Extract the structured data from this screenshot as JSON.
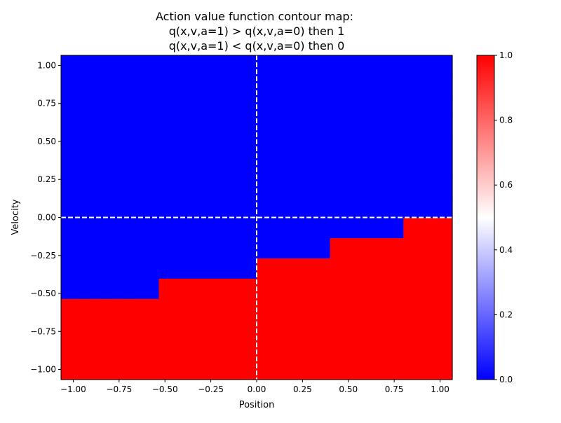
{
  "chart_data": {
    "type": "heatmap",
    "title_lines": [
      "Action value function contour map:",
      "q(x,v,a=1) > q(x,v,a=0) then 1",
      "q(x,v,a=1) < q(x,v,a=0) then 0"
    ],
    "xlabel": "Position",
    "ylabel": "Velocity",
    "xlim": [
      -1.0667,
      1.0667
    ],
    "ylim": [
      -1.0667,
      1.0667
    ],
    "x_ticks": [
      "−1.00",
      "−0.75",
      "−0.50",
      "−0.25",
      "0.00",
      "0.25",
      "0.50",
      "0.75",
      "1.00"
    ],
    "x_tick_values": [
      -1,
      -0.75,
      -0.5,
      -0.25,
      0,
      0.25,
      0.5,
      0.75,
      1
    ],
    "y_ticks": [
      "−1.00",
      "−0.75",
      "−0.50",
      "−0.25",
      "0.00",
      "0.25",
      "0.50",
      "0.75",
      "1.00"
    ],
    "y_tick_values": [
      -1,
      -0.75,
      -0.5,
      -0.25,
      0,
      0.25,
      0.5,
      0.75,
      1
    ],
    "x_centers_range": [
      -1,
      1
    ],
    "y_centers_range": [
      -1,
      1
    ],
    "z_rows_bottom_to_top": [
      [
        1,
        1,
        1,
        1,
        1,
        1,
        1,
        1,
        1,
        1,
        1,
        1,
        1,
        1,
        1,
        1
      ],
      [
        1,
        1,
        1,
        1,
        1,
        1,
        1,
        1,
        1,
        1,
        1,
        1,
        1,
        1,
        1,
        1
      ],
      [
        1,
        1,
        1,
        1,
        1,
        1,
        1,
        1,
        1,
        1,
        1,
        1,
        1,
        1,
        1,
        1
      ],
      [
        1,
        1,
        1,
        1,
        1,
        1,
        1,
        1,
        1,
        1,
        1,
        1,
        1,
        1,
        1,
        1
      ],
      [
        0,
        0,
        0,
        0,
        1,
        1,
        1,
        1,
        1,
        1,
        1,
        1,
        1,
        1,
        1,
        1
      ],
      [
        0,
        0,
        0,
        0,
        0,
        0,
        0,
        0,
        1,
        1,
        1,
        1,
        1,
        1,
        1,
        1
      ],
      [
        0,
        0,
        0,
        0,
        0,
        0,
        0,
        0,
        0,
        0,
        0,
        1,
        1,
        1,
        1,
        1
      ],
      [
        0,
        0,
        0,
        0,
        0,
        0,
        0,
        0,
        0,
        0,
        0,
        0,
        0,
        0,
        1,
        1
      ],
      [
        0,
        0,
        0,
        0,
        0,
        0,
        0,
        0,
        0,
        0,
        0,
        0,
        0,
        0,
        0,
        0
      ],
      [
        0,
        0,
        0,
        0,
        0,
        0,
        0,
        0,
        0,
        0,
        0,
        0,
        0,
        0,
        0,
        0
      ],
      [
        0,
        0,
        0,
        0,
        0,
        0,
        0,
        0,
        0,
        0,
        0,
        0,
        0,
        0,
        0,
        0
      ],
      [
        0,
        0,
        0,
        0,
        0,
        0,
        0,
        0,
        0,
        0,
        0,
        0,
        0,
        0,
        0,
        0
      ],
      [
        0,
        0,
        0,
        0,
        0,
        0,
        0,
        0,
        0,
        0,
        0,
        0,
        0,
        0,
        0,
        0
      ],
      [
        0,
        0,
        0,
        0,
        0,
        0,
        0,
        0,
        0,
        0,
        0,
        0,
        0,
        0,
        0,
        0
      ],
      [
        0,
        0,
        0,
        0,
        0,
        0,
        0,
        0,
        0,
        0,
        0,
        0,
        0,
        0,
        0,
        0
      ],
      [
        0,
        0,
        0,
        0,
        0,
        0,
        0,
        0,
        0,
        0,
        0,
        0,
        0,
        0,
        0,
        0
      ]
    ],
    "colormap": {
      "low": "#0000ff",
      "mid": "#ffffff",
      "high": "#ff0000"
    },
    "colorbar_range": [
      0,
      1
    ],
    "colorbar_ticks": [
      "0.0",
      "0.2",
      "0.4",
      "0.6",
      "0.8",
      "1.0"
    ],
    "colorbar_tick_values": [
      0,
      0.2,
      0.4,
      0.6,
      0.8,
      1.0
    ],
    "reference_lines": {
      "x": 0,
      "y": 0,
      "color": "#ffffff",
      "style": "dashed"
    },
    "grid": false
  }
}
